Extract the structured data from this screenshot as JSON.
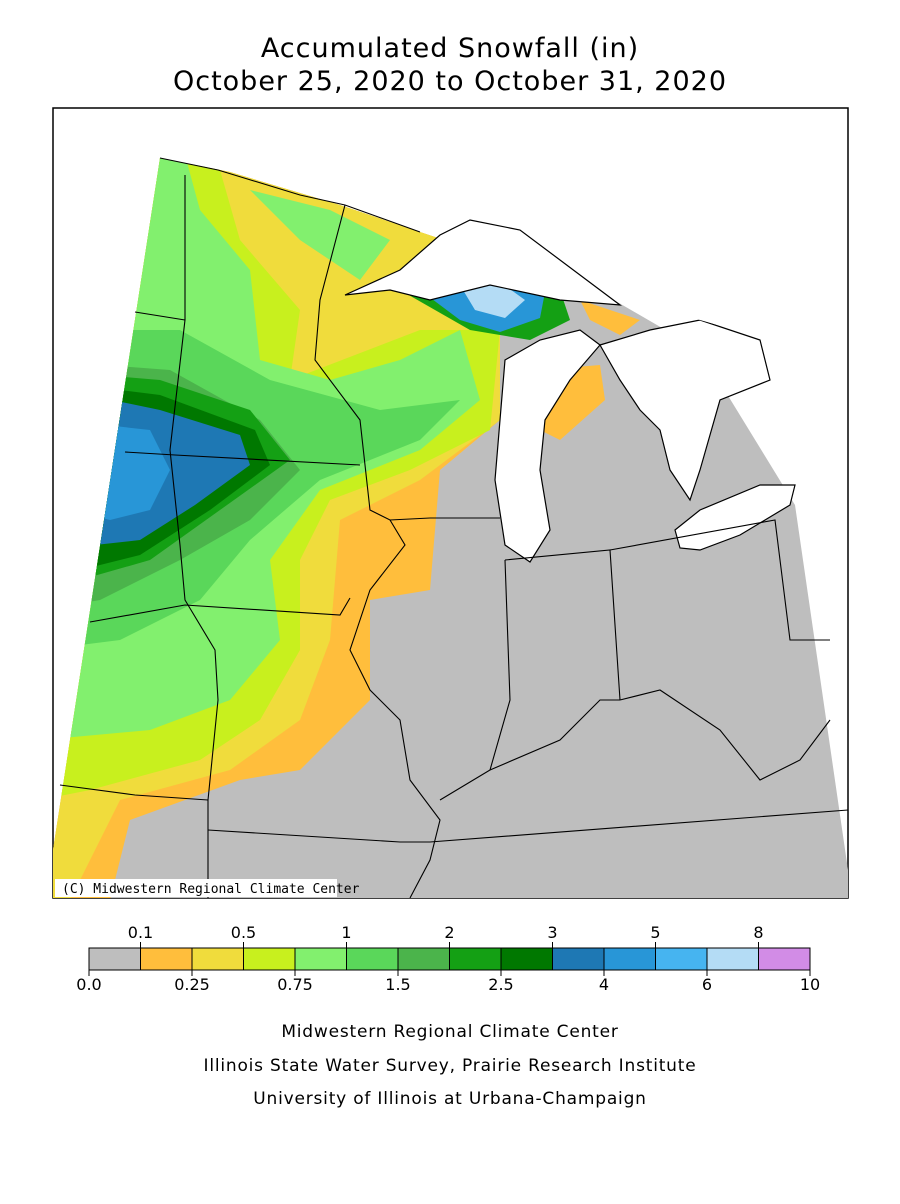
{
  "title": [
    "Accumulated Snowfall (in)",
    "October 25, 2020 to October 31, 2020"
  ],
  "copyright": "(C) Midwestern Regional Climate Center",
  "legend": {
    "bounds": [
      {
        "value": 0,
        "label": "0.0"
      },
      0.1,
      0.25,
      0.5,
      0.75,
      1,
      1.5,
      2,
      2.5,
      3,
      4,
      5,
      6,
      8,
      10
    ],
    "colors": [
      "#bebebe",
      "#ffbe3c",
      "#f0dc3c",
      "#c8f01e",
      "#82f06e",
      "#5ad75a",
      "#4bb44b",
      "#14a014",
      "#007800",
      "#1e78b4",
      "#2896d7",
      "#46b4f0",
      "#b4dcf5",
      "#d28ce6"
    ]
  },
  "footer": [
    "Midwestern Regional Climate Center",
    "Illinois State Water Survey, Prairie Research Institute",
    "University of Illinois at Urbana-Champaign"
  ]
}
